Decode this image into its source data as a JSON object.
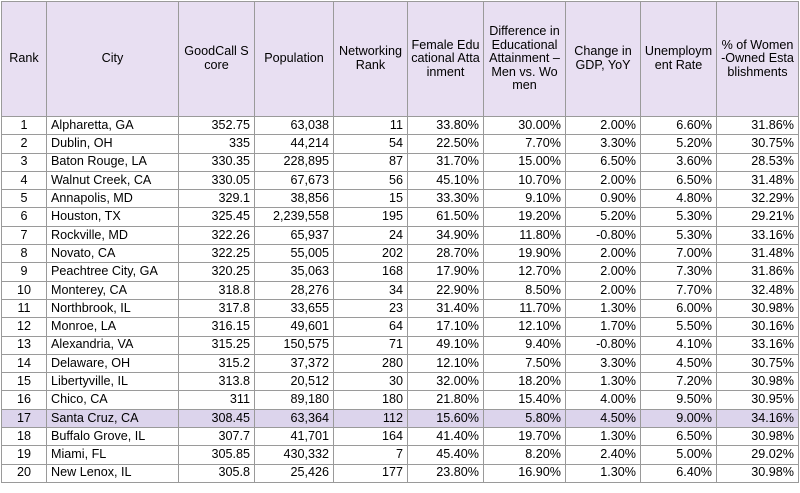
{
  "table": {
    "headers": [
      "Rank",
      "City",
      "GoodCall Score",
      "Population",
      "Networking Rank",
      "Female Educational Attainment",
      "Difference in Educational Attainment – Men vs. Women",
      "Change in GDP, YoY",
      "Unemployment Rate",
      "% of Women-Owned Establishments"
    ],
    "highlight_row": 16,
    "rows": [
      [
        "1",
        "Alpharetta, GA",
        "352.75",
        "63,038",
        "11",
        "33.80%",
        "30.00%",
        "2.00%",
        "6.60%",
        "31.86%"
      ],
      [
        "2",
        "Dublin, OH",
        "335",
        "44,214",
        "54",
        "22.50%",
        "7.70%",
        "3.30%",
        "5.20%",
        "30.75%"
      ],
      [
        "3",
        "Baton Rouge, LA",
        "330.35",
        "228,895",
        "87",
        "31.70%",
        "15.00%",
        "6.50%",
        "3.60%",
        "28.53%"
      ],
      [
        "4",
        "Walnut Creek, CA",
        "330.05",
        "67,673",
        "56",
        "45.10%",
        "10.70%",
        "2.00%",
        "6.50%",
        "31.48%"
      ],
      [
        "5",
        "Annapolis, MD",
        "329.1",
        "38,856",
        "15",
        "33.30%",
        "9.10%",
        "0.90%",
        "4.80%",
        "32.29%"
      ],
      [
        "6",
        "Houston, TX",
        "325.45",
        "2,239,558",
        "195",
        "61.50%",
        "19.20%",
        "5.20%",
        "5.30%",
        "29.21%"
      ],
      [
        "7",
        "Rockville, MD",
        "322.26",
        "65,937",
        "24",
        "34.90%",
        "11.80%",
        "-0.80%",
        "5.30%",
        "33.16%"
      ],
      [
        "8",
        "Novato, CA",
        "322.25",
        "55,005",
        "202",
        "28.70%",
        "19.90%",
        "2.00%",
        "7.00%",
        "31.48%"
      ],
      [
        "9",
        "Peachtree City, GA",
        "320.25",
        "35,063",
        "168",
        "17.90%",
        "12.70%",
        "2.00%",
        "7.30%",
        "31.86%"
      ],
      [
        "10",
        "Monterey, CA",
        "318.8",
        "28,276",
        "34",
        "22.90%",
        "8.50%",
        "2.00%",
        "7.70%",
        "32.48%"
      ],
      [
        "11",
        "Northbrook, IL",
        "317.8",
        "33,655",
        "23",
        "31.40%",
        "11.70%",
        "1.30%",
        "6.00%",
        "30.98%"
      ],
      [
        "12",
        "Monroe, LA",
        "316.15",
        "49,601",
        "64",
        "17.10%",
        "12.10%",
        "1.70%",
        "5.50%",
        "30.16%"
      ],
      [
        "13",
        "Alexandria, VA",
        "315.25",
        "150,575",
        "71",
        "49.10%",
        "9.40%",
        "-0.80%",
        "4.10%",
        "33.16%"
      ],
      [
        "14",
        "Delaware, OH",
        "315.2",
        "37,372",
        "280",
        "12.10%",
        "7.50%",
        "3.30%",
        "4.50%",
        "30.75%"
      ],
      [
        "15",
        "Libertyville, IL",
        "313.8",
        "20,512",
        "30",
        "32.00%",
        "18.20%",
        "1.30%",
        "7.20%",
        "30.98%"
      ],
      [
        "16",
        "Chico, CA",
        "311",
        "89,180",
        "180",
        "21.80%",
        "15.40%",
        "4.00%",
        "9.50%",
        "30.95%"
      ],
      [
        "17",
        "Santa Cruz, CA",
        "308.45",
        "63,364",
        "112",
        "15.60%",
        "5.80%",
        "4.50%",
        "9.00%",
        "34.16%"
      ],
      [
        "18",
        "Buffalo Grove, IL",
        "307.7",
        "41,701",
        "164",
        "41.40%",
        "19.70%",
        "1.30%",
        "6.50%",
        "30.98%"
      ],
      [
        "19",
        "Miami, FL",
        "305.85",
        "430,332",
        "7",
        "45.40%",
        "8.20%",
        "2.40%",
        "5.00%",
        "29.02%"
      ],
      [
        "20",
        "New Lenox, IL",
        "305.8",
        "25,426",
        "177",
        "23.80%",
        "16.90%",
        "1.30%",
        "6.40%",
        "30.98%"
      ]
    ]
  }
}
